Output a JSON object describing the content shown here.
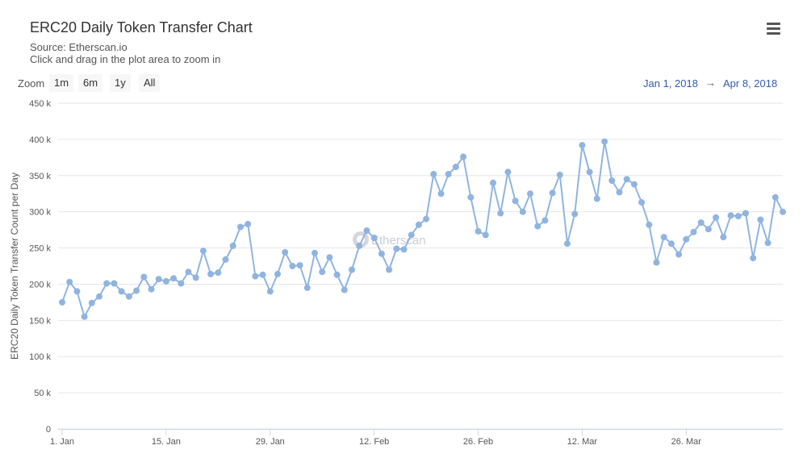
{
  "header": {
    "title": "ERC20 Daily Token Transfer Chart",
    "subtitle": "Source: Etherscan.io",
    "hint": "Click and drag in the plot area to zoom in"
  },
  "zoom": {
    "label": "Zoom",
    "buttons": [
      "1m",
      "6m",
      "1y",
      "All"
    ]
  },
  "range": {
    "from": "Jan 1, 2018",
    "arrow": "→",
    "to": "Apr 8, 2018"
  },
  "watermark": "Etherscan",
  "menu_icon": "hamburger-menu-icon",
  "chart_data": {
    "type": "line",
    "ylabel": "ERC20 Daily Token Transfer Count per Day",
    "xlabel": "",
    "ylim": [
      0,
      450000
    ],
    "yticks": [
      0,
      50000,
      100000,
      150000,
      200000,
      250000,
      300000,
      350000,
      400000,
      450000
    ],
    "ytick_labels": [
      "0",
      "50 k",
      "100 k",
      "150 k",
      "200 k",
      "250 k",
      "300 k",
      "350 k",
      "400 k",
      "450 k"
    ],
    "xlim": [
      "2018-01-01",
      "2018-04-08"
    ],
    "xticks": [
      "2018-01-01",
      "2018-01-15",
      "2018-01-29",
      "2018-02-12",
      "2018-02-26",
      "2018-03-12",
      "2018-03-26"
    ],
    "xtick_labels": [
      "1. Jan",
      "15. Jan",
      "29. Jan",
      "12. Feb",
      "26. Feb",
      "12. Mar",
      "26. Mar"
    ],
    "grid": true,
    "line_color": "#90b4e0",
    "series": [
      {
        "x_start": "2018-01-01",
        "x_step": "1 day",
        "values": [
          175000,
          203000,
          190000,
          155000,
          174000,
          183000,
          201000,
          201000,
          190000,
          183000,
          191000,
          210000,
          193000,
          207000,
          204000,
          208000,
          201000,
          217000,
          209000,
          246000,
          214000,
          216000,
          234000,
          253000,
          279000,
          283000,
          211000,
          213000,
          190000,
          214000,
          244000,
          225000,
          226000,
          195000,
          243000,
          217000,
          237000,
          213000,
          192000,
          220000,
          253000,
          274000,
          264000,
          242000,
          220000,
          249000,
          248000,
          268000,
          282000,
          290000,
          352000,
          325000,
          352000,
          362000,
          376000,
          320000,
          273000,
          268000,
          340000,
          298000,
          355000,
          315000,
          300000,
          325000,
          280000,
          288000,
          326000,
          351000,
          256000,
          297000,
          392000,
          355000,
          318000,
          397000,
          343000,
          327000,
          345000,
          338000,
          313000,
          282000,
          230000,
          265000,
          256000,
          241000,
          262000,
          272000,
          285000,
          276000,
          292000,
          265000,
          295000,
          294000,
          298000,
          236000,
          289000,
          257000,
          320000,
          300000
        ]
      }
    ]
  }
}
